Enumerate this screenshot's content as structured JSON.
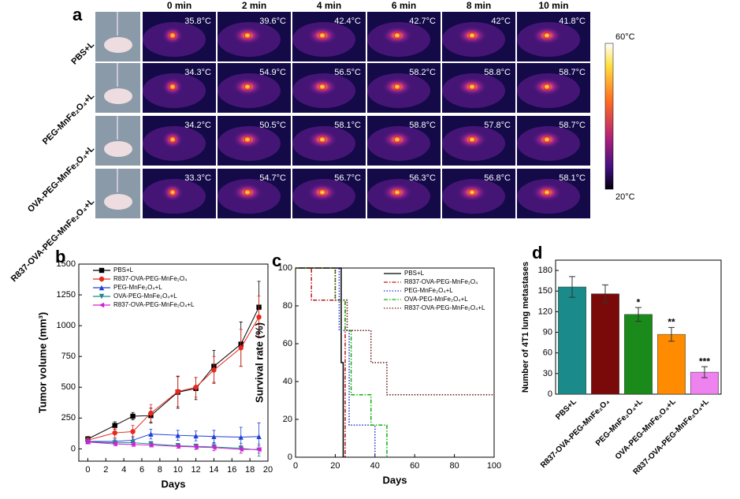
{
  "figure_a": {
    "label": "a",
    "columns": [
      "0 min",
      "2 min",
      "4 min",
      "6 min",
      "8 min",
      "10 min"
    ],
    "rows": [
      "PBS+L",
      "PEG-MnFe₂O₄+L",
      "OVA-PEG-MnFe₂O₄+L",
      "R837-OVA-PEG-MnFe₂O₄+L"
    ],
    "temps": [
      [
        "35.8°C",
        "39.6°C",
        "42.4°C",
        "42.7°C",
        "42°C",
        "41.8°C"
      ],
      [
        "34.3°C",
        "54.9°C",
        "56.5°C",
        "58.2°C",
        "58.8°C",
        "58.7°C"
      ],
      [
        "34.2°C",
        "50.5°C",
        "58.1°C",
        "58.8°C",
        "57.8°C",
        "58.7°C"
      ],
      [
        "33.3°C",
        "54.7°C",
        "56.7°C",
        "56.3°C",
        "56.8°C",
        "58.1°C"
      ]
    ],
    "colorbar": [
      "60°C",
      "20°C"
    ]
  },
  "chart_data": [
    {
      "type": "line",
      "panel_label": "b",
      "x_label": "Days",
      "y_label": "Tumor volume (mm³)",
      "x": [
        0,
        3,
        5,
        7,
        10,
        12,
        14,
        17,
        19
      ],
      "xlim": [
        -1,
        20
      ],
      "xticks": [
        0,
        2,
        4,
        6,
        8,
        10,
        12,
        14,
        16,
        18,
        20
      ],
      "ylim": [
        -100,
        1500
      ],
      "yticks": [
        0,
        250,
        500,
        750,
        1000,
        1250,
        1500
      ],
      "series": [
        {
          "name": "PBS+L",
          "color": "#000000",
          "marker": "square",
          "values": [
            80,
            190,
            265,
            270,
            460,
            490,
            670,
            850,
            1150
          ],
          "errors": [
            20,
            30,
            30,
            60,
            130,
            90,
            130,
            180,
            210
          ]
        },
        {
          "name": "R837-OVA-PEG-MnFe₂O₄",
          "color": "#e8281e",
          "marker": "circle",
          "values": [
            70,
            130,
            140,
            290,
            465,
            500,
            640,
            820,
            1070
          ],
          "errors": [
            20,
            40,
            50,
            70,
            120,
            80,
            110,
            150,
            170
          ]
        },
        {
          "name": "PEG-MnFe₂O₄+L",
          "color": "#1f3fd8",
          "marker": "triangle-up",
          "values": [
            60,
            60,
            70,
            120,
            110,
            105,
            100,
            95,
            100
          ],
          "errors": [
            20,
            20,
            30,
            40,
            40,
            40,
            50,
            80,
            110
          ]
        },
        {
          "name": "OVA-PEG-MnFe₂O₄+L",
          "color": "#1a8a8a",
          "marker": "triangle-down",
          "values": [
            55,
            50,
            50,
            40,
            25,
            20,
            15,
            5,
            -10
          ],
          "errors": [
            15,
            15,
            20,
            20,
            20,
            20,
            30,
            40,
            50
          ]
        },
        {
          "name": "R837-OVA-PEG-MnFe₂O₄+L",
          "color": "#d41fd4",
          "marker": "triangle-left",
          "values": [
            55,
            40,
            35,
            30,
            20,
            15,
            10,
            -5,
            -5
          ],
          "errors": [
            15,
            15,
            15,
            15,
            15,
            20,
            25,
            30,
            30
          ]
        }
      ]
    },
    {
      "type": "line",
      "panel_label": "c",
      "x_label": "Days",
      "y_label": "Survival rate (%)",
      "xlim": [
        0,
        100
      ],
      "xticks": [
        0,
        20,
        40,
        60,
        80,
        100
      ],
      "ylim": [
        0,
        100
      ],
      "yticks": [
        0,
        20,
        40,
        60,
        80,
        100
      ],
      "series": [
        {
          "name": "PBS+L",
          "color": "#000000",
          "dash": "solid",
          "x": [
            0,
            23,
            23,
            24,
            24
          ],
          "values": [
            100,
            100,
            50,
            50,
            0
          ]
        },
        {
          "name": "R837-OVA-PEG-MnFe₂O₄",
          "color": "#c0141e",
          "dash": "dash-dot",
          "x": [
            0,
            8,
            8,
            25,
            25
          ],
          "values": [
            100,
            100,
            83,
            83,
            0
          ]
        },
        {
          "name": "PEG-MnFe₂O₄+L",
          "color": "#2030c8",
          "dash": "dot",
          "x": [
            0,
            22,
            22,
            27,
            27,
            40,
            40
          ],
          "values": [
            100,
            100,
            67,
            67,
            17,
            17,
            0
          ]
        },
        {
          "name": "OVA-PEG-MnFe₂O₄+L",
          "color": "#10b010",
          "dash": "dash-dot",
          "x": [
            0,
            20,
            20,
            25,
            25,
            28,
            28,
            38,
            38,
            46,
            46
          ],
          "values": [
            100,
            100,
            83,
            83,
            67,
            67,
            33,
            33,
            17,
            17,
            0
          ]
        },
        {
          "name": "R837-OVA-PEG-MnFe₂O₄+L",
          "color": "#6a1010",
          "dash": "dot",
          "x": [
            0,
            20,
            20,
            26,
            26,
            38,
            38,
            46,
            46,
            100
          ],
          "values": [
            100,
            100,
            83,
            83,
            67,
            67,
            50,
            50,
            33,
            33
          ]
        }
      ]
    },
    {
      "type": "bar",
      "panel_label": "d",
      "y_label": "Number of 4T1 lung metastases",
      "categories": [
        "PBS+L",
        "R837-OVA-PEG-MnFe₂O₄",
        "PEG-MnFe₂O₄+L",
        "OVA-PEG-MnFe₂O₄+L",
        "R837-OVA-PEG-MnFe₂O₄+L"
      ],
      "values": [
        156,
        146,
        116,
        87,
        32
      ],
      "errors": [
        15,
        13,
        10,
        10,
        8
      ],
      "colors": [
        "#1a8a8a",
        "#7a0a0a",
        "#1a8a1a",
        "#ff8c00",
        "#ee82ee"
      ],
      "annotations": [
        null,
        null,
        "*",
        "**",
        "***"
      ],
      "ylim": [
        0,
        195
      ],
      "yticks": [
        0,
        30,
        60,
        90,
        120,
        150,
        180
      ]
    }
  ]
}
